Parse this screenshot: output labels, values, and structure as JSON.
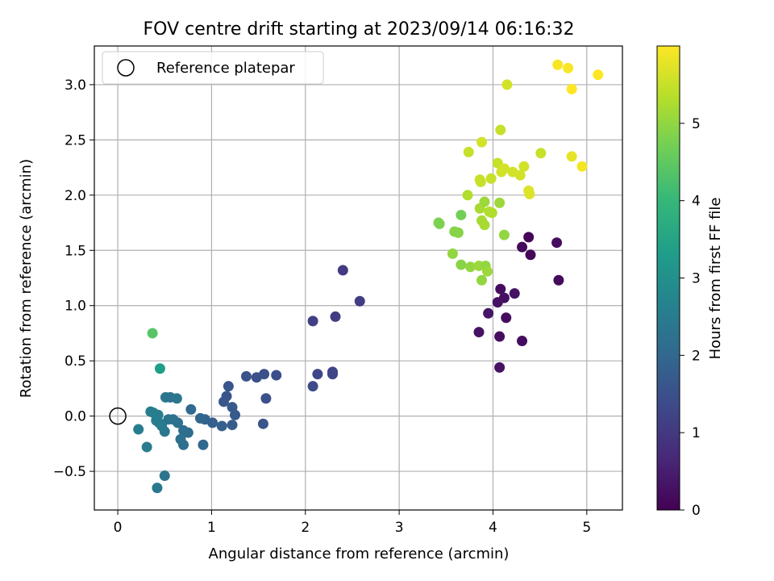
{
  "chart_data": {
    "type": "scatter",
    "title": "FOV centre drift starting at 2023/09/14 06:16:32",
    "xlabel": "Angular distance from reference (arcmin)",
    "ylabel": "Rotation from reference (arcmin)",
    "xlim": [
      -0.25,
      5.38
    ],
    "ylim": [
      -0.85,
      3.35
    ],
    "x_ticks": [
      0,
      1,
      2,
      3,
      4,
      5
    ],
    "x_tick_labels": [
      "0",
      "1",
      "2",
      "3",
      "4",
      "5"
    ],
    "y_ticks": [
      -0.5,
      0.0,
      0.5,
      1.0,
      1.5,
      2.0,
      2.5,
      3.0
    ],
    "y_tick_labels": [
      "−0.5",
      "0.0",
      "0.5",
      "1.0",
      "1.5",
      "2.0",
      "2.5",
      "3.0"
    ],
    "grid": true,
    "legend": {
      "placement": "top-left",
      "entries": [
        "Reference platepar"
      ]
    },
    "reference_point": {
      "name": "Reference platepar",
      "x": 0.0,
      "y": 0.0,
      "marker": "open-circle"
    },
    "colorbar": {
      "label": "Hours from first FF file",
      "colormap": "viridis",
      "range": [
        0,
        6
      ],
      "ticks": [
        0,
        1,
        2,
        3,
        4,
        5
      ],
      "tick_labels": [
        "0",
        "1",
        "2",
        "3",
        "4",
        "5"
      ]
    },
    "colormap_stops": [
      "#440154",
      "#482878",
      "#3e4989",
      "#31688e",
      "#26828e",
      "#1f9e89",
      "#35b779",
      "#6ece58",
      "#b5de2b",
      "#fde725"
    ],
    "points": [
      {
        "x": 4.38,
        "y": 1.62,
        "c": 0.1
      },
      {
        "x": 4.31,
        "y": 1.53,
        "c": 0.15
      },
      {
        "x": 4.4,
        "y": 1.46,
        "c": 0.1
      },
      {
        "x": 4.68,
        "y": 1.57,
        "c": 0.2
      },
      {
        "x": 4.7,
        "y": 1.23,
        "c": 0.15
      },
      {
        "x": 4.08,
        "y": 1.15,
        "c": 0.2
      },
      {
        "x": 4.12,
        "y": 1.07,
        "c": 0.25
      },
      {
        "x": 4.23,
        "y": 1.11,
        "c": 0.3
      },
      {
        "x": 4.05,
        "y": 1.03,
        "c": 0.3
      },
      {
        "x": 3.95,
        "y": 0.93,
        "c": 0.35
      },
      {
        "x": 4.14,
        "y": 0.89,
        "c": 0.2
      },
      {
        "x": 3.85,
        "y": 0.76,
        "c": 0.3
      },
      {
        "x": 4.07,
        "y": 0.72,
        "c": 0.2
      },
      {
        "x": 4.31,
        "y": 0.68,
        "c": 0.2
      },
      {
        "x": 4.07,
        "y": 0.44,
        "c": 0.3
      },
      {
        "x": 2.4,
        "y": 1.32,
        "c": 1.05
      },
      {
        "x": 2.58,
        "y": 1.04,
        "c": 1.1
      },
      {
        "x": 2.08,
        "y": 0.86,
        "c": 1.15
      },
      {
        "x": 2.32,
        "y": 0.9,
        "c": 1.1
      },
      {
        "x": 2.13,
        "y": 0.38,
        "c": 1.3
      },
      {
        "x": 2.29,
        "y": 0.4,
        "c": 1.2
      },
      {
        "x": 2.29,
        "y": 0.38,
        "c": 1.25
      },
      {
        "x": 2.08,
        "y": 0.27,
        "c": 1.35
      },
      {
        "x": 1.69,
        "y": 0.37,
        "c": 1.45
      },
      {
        "x": 1.56,
        "y": 0.38,
        "c": 1.5
      },
      {
        "x": 1.48,
        "y": 0.35,
        "c": 1.5
      },
      {
        "x": 1.37,
        "y": 0.36,
        "c": 1.55
      },
      {
        "x": 1.58,
        "y": 0.16,
        "c": 1.5
      },
      {
        "x": 1.55,
        "y": -0.07,
        "c": 1.6
      },
      {
        "x": 1.18,
        "y": 0.27,
        "c": 1.6
      },
      {
        "x": 1.16,
        "y": 0.18,
        "c": 1.6
      },
      {
        "x": 1.13,
        "y": 0.13,
        "c": 1.65
      },
      {
        "x": 1.22,
        "y": 0.08,
        "c": 1.7
      },
      {
        "x": 1.25,
        "y": 0.01,
        "c": 1.7
      },
      {
        "x": 1.22,
        "y": -0.08,
        "c": 1.75
      },
      {
        "x": 1.11,
        "y": -0.09,
        "c": 1.8
      },
      {
        "x": 1.01,
        "y": -0.06,
        "c": 1.85
      },
      {
        "x": 0.93,
        "y": -0.03,
        "c": 1.9
      },
      {
        "x": 0.88,
        "y": -0.02,
        "c": 1.95
      },
      {
        "x": 0.91,
        "y": -0.26,
        "c": 2.0
      },
      {
        "x": 0.78,
        "y": 0.06,
        "c": 2.05
      },
      {
        "x": 0.75,
        "y": -0.15,
        "c": 2.1
      },
      {
        "x": 0.7,
        "y": -0.13,
        "c": 2.15
      },
      {
        "x": 0.7,
        "y": -0.26,
        "c": 2.15
      },
      {
        "x": 0.67,
        "y": -0.21,
        "c": 2.2
      },
      {
        "x": 0.64,
        "y": -0.06,
        "c": 2.2
      },
      {
        "x": 0.59,
        "y": -0.03,
        "c": 2.25
      },
      {
        "x": 0.54,
        "y": -0.03,
        "c": 2.3
      },
      {
        "x": 0.51,
        "y": 0.17,
        "c": 2.35
      },
      {
        "x": 0.56,
        "y": 0.17,
        "c": 2.3
      },
      {
        "x": 0.63,
        "y": 0.16,
        "c": 2.35
      },
      {
        "x": 0.5,
        "y": -0.14,
        "c": 2.4
      },
      {
        "x": 0.47,
        "y": -0.09,
        "c": 2.45
      },
      {
        "x": 0.44,
        "y": -0.06,
        "c": 2.5
      },
      {
        "x": 0.41,
        "y": -0.04,
        "c": 2.5
      },
      {
        "x": 0.43,
        "y": 0.01,
        "c": 2.55
      },
      {
        "x": 0.38,
        "y": 0.03,
        "c": 2.55
      },
      {
        "x": 0.35,
        "y": 0.04,
        "c": 2.6
      },
      {
        "x": 0.22,
        "y": -0.12,
        "c": 2.55
      },
      {
        "x": 0.31,
        "y": -0.28,
        "c": 2.5
      },
      {
        "x": 0.5,
        "y": -0.54,
        "c": 2.3
      },
      {
        "x": 0.42,
        "y": -0.65,
        "c": 2.4
      },
      {
        "x": 0.45,
        "y": 0.43,
        "c": 3.3
      },
      {
        "x": 0.37,
        "y": 0.75,
        "c": 4.4
      },
      {
        "x": 3.42,
        "y": 1.75,
        "c": 4.8
      },
      {
        "x": 3.43,
        "y": 1.74,
        "c": 4.8
      },
      {
        "x": 3.66,
        "y": 1.82,
        "c": 4.7
      },
      {
        "x": 3.59,
        "y": 1.67,
        "c": 4.9
      },
      {
        "x": 3.63,
        "y": 1.66,
        "c": 4.9
      },
      {
        "x": 3.57,
        "y": 1.47,
        "c": 5.0
      },
      {
        "x": 3.66,
        "y": 1.37,
        "c": 4.9
      },
      {
        "x": 3.76,
        "y": 1.35,
        "c": 5.0
      },
      {
        "x": 3.85,
        "y": 1.36,
        "c": 5.1
      },
      {
        "x": 3.92,
        "y": 1.36,
        "c": 5.0
      },
      {
        "x": 3.94,
        "y": 1.31,
        "c": 5.1
      },
      {
        "x": 3.88,
        "y": 1.23,
        "c": 5.0
      },
      {
        "x": 3.88,
        "y": 1.77,
        "c": 5.2
      },
      {
        "x": 3.91,
        "y": 1.73,
        "c": 5.2
      },
      {
        "x": 3.86,
        "y": 1.88,
        "c": 5.2
      },
      {
        "x": 3.91,
        "y": 1.94,
        "c": 5.1
      },
      {
        "x": 3.96,
        "y": 1.85,
        "c": 5.3
      },
      {
        "x": 3.99,
        "y": 1.84,
        "c": 5.3
      },
      {
        "x": 3.73,
        "y": 2.0,
        "c": 5.3
      },
      {
        "x": 4.07,
        "y": 1.93,
        "c": 5.1
      },
      {
        "x": 4.12,
        "y": 1.64,
        "c": 5.0
      },
      {
        "x": 3.86,
        "y": 2.14,
        "c": 5.5
      },
      {
        "x": 3.87,
        "y": 2.12,
        "c": 5.5
      },
      {
        "x": 3.98,
        "y": 2.15,
        "c": 5.5
      },
      {
        "x": 4.05,
        "y": 2.29,
        "c": 5.5
      },
      {
        "x": 4.09,
        "y": 2.21,
        "c": 5.6
      },
      {
        "x": 4.12,
        "y": 2.24,
        "c": 5.6
      },
      {
        "x": 4.21,
        "y": 2.21,
        "c": 5.6
      },
      {
        "x": 4.29,
        "y": 2.18,
        "c": 5.6
      },
      {
        "x": 4.33,
        "y": 2.26,
        "c": 5.6
      },
      {
        "x": 4.38,
        "y": 2.04,
        "c": 5.7
      },
      {
        "x": 4.39,
        "y": 2.01,
        "c": 5.7
      },
      {
        "x": 4.51,
        "y": 2.38,
        "c": 5.5
      },
      {
        "x": 3.74,
        "y": 2.39,
        "c": 5.5
      },
      {
        "x": 3.88,
        "y": 2.48,
        "c": 5.6
      },
      {
        "x": 4.08,
        "y": 2.59,
        "c": 5.5
      },
      {
        "x": 4.15,
        "y": 3.0,
        "c": 5.6
      },
      {
        "x": 4.84,
        "y": 2.35,
        "c": 5.8
      },
      {
        "x": 4.95,
        "y": 2.26,
        "c": 5.9
      },
      {
        "x": 4.69,
        "y": 3.18,
        "c": 5.95
      },
      {
        "x": 4.8,
        "y": 3.15,
        "c": 5.95
      },
      {
        "x": 5.12,
        "y": 3.09,
        "c": 6.0
      },
      {
        "x": 4.84,
        "y": 2.96,
        "c": 6.0
      }
    ]
  }
}
